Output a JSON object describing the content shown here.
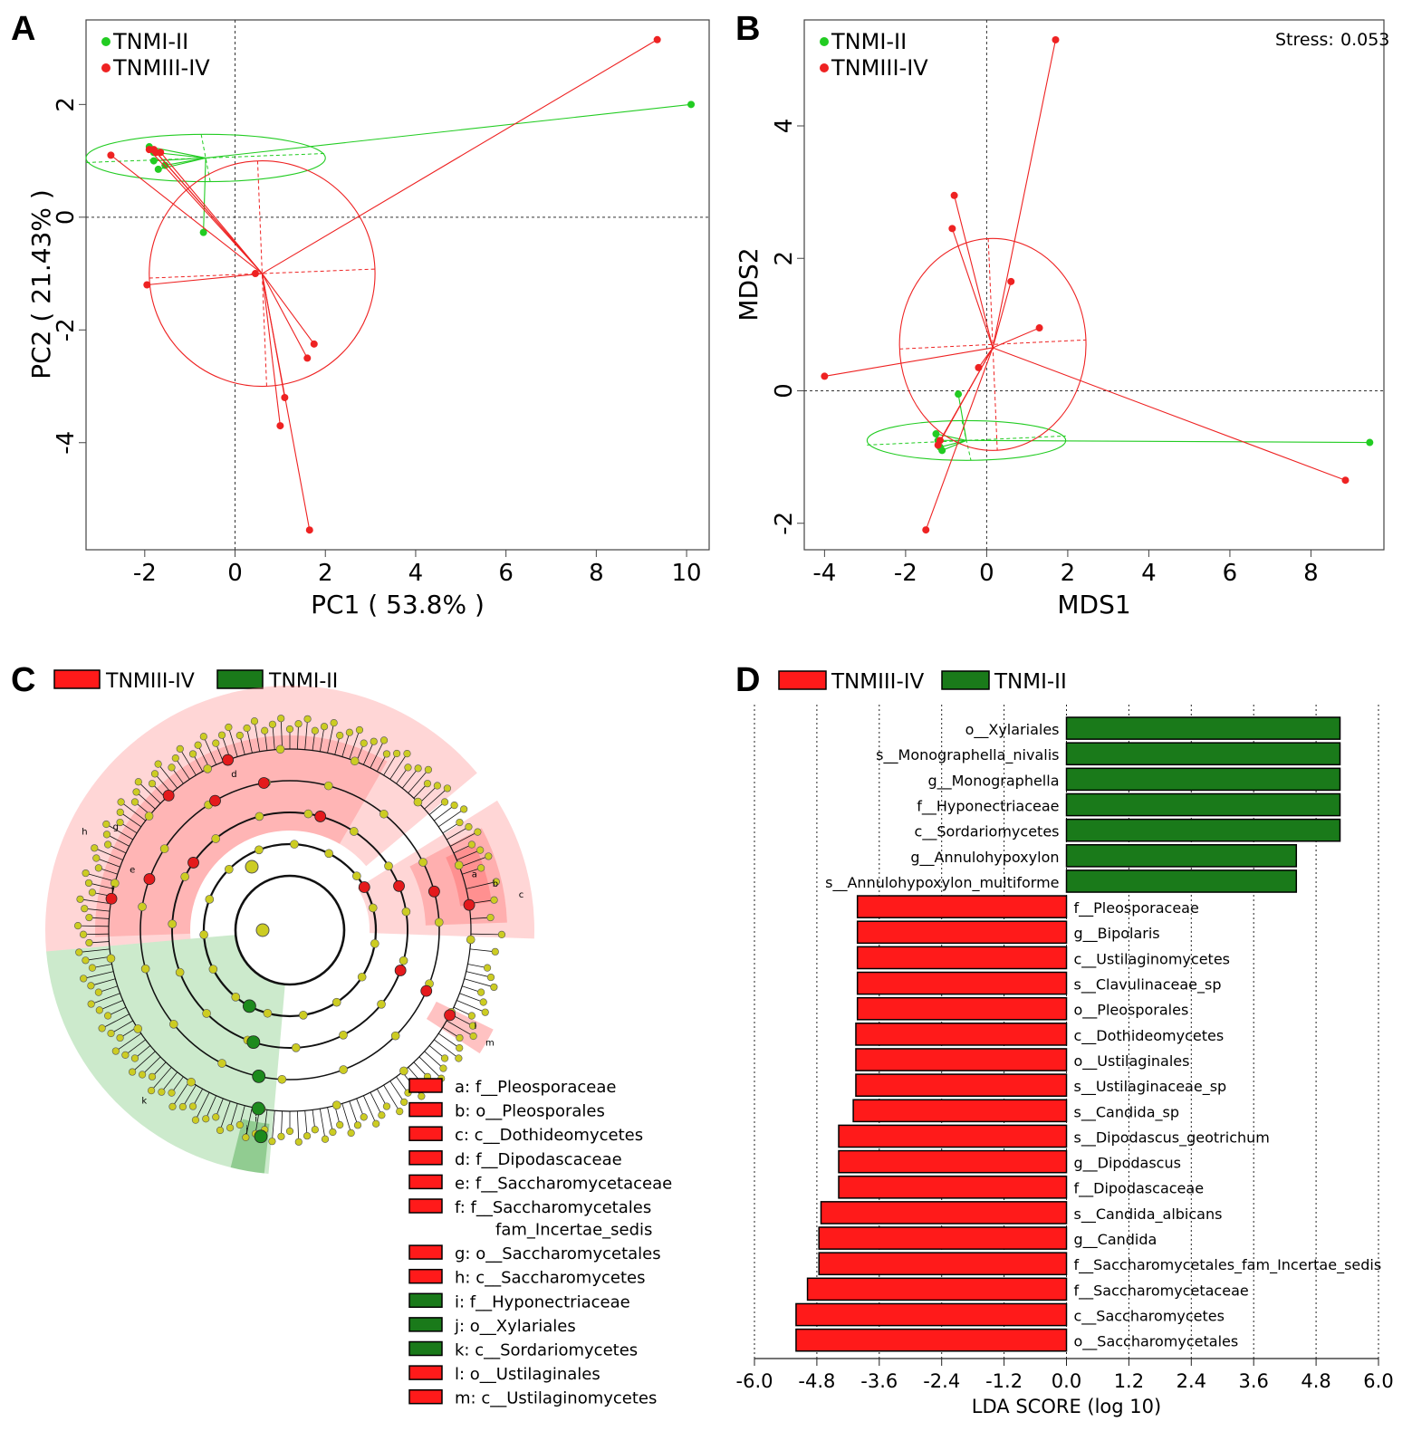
{
  "colors": {
    "green": "#22cc22",
    "red": "#ee2222",
    "dkgreen": "#1a7a1a",
    "barred": "#ff1a1a",
    "node": "#cccc22"
  },
  "panel_labels": [
    "A",
    "B",
    "C",
    "D"
  ],
  "chart_data": [
    {
      "panel": "A",
      "type": "scatter",
      "xlabel": "PC1 ( 53.8% )",
      "ylabel": "PC2 ( 21.43% )",
      "xlim": [
        -3.3,
        10.5
      ],
      "ylim": [
        -5.9,
        3.5
      ],
      "xticks": [
        -2,
        0,
        2,
        4,
        6,
        8,
        10
      ],
      "yticks": [
        -4,
        -2,
        0,
        2
      ],
      "legend": [
        "TNMI-II",
        "TNMIII-IV"
      ],
      "series": [
        {
          "name": "TNMI-II",
          "color": "green",
          "centroid": [
            -0.65,
            1.05
          ],
          "ellipse": {
            "cx": -0.65,
            "cy": 1.05,
            "rx": 2.65,
            "ry": 0.42
          },
          "points": [
            [
              -1.9,
              1.25
            ],
            [
              -1.8,
              1.15
            ],
            [
              -1.8,
              1.0
            ],
            [
              -1.7,
              0.85
            ],
            [
              -1.55,
              0.92
            ],
            [
              -0.7,
              -0.27
            ],
            [
              10.1,
              2.0
            ]
          ]
        },
        {
          "name": "TNMIII-IV",
          "color": "red",
          "centroid": [
            0.6,
            -1.0
          ],
          "ellipse": {
            "cx": 0.6,
            "cy": -1.0,
            "rx": 2.5,
            "ry": 2.0
          },
          "points": [
            [
              -2.75,
              1.1
            ],
            [
              -1.9,
              1.2
            ],
            [
              -1.8,
              1.2
            ],
            [
              -1.75,
              1.15
            ],
            [
              -1.65,
              1.15
            ],
            [
              -1.95,
              -1.2
            ],
            [
              0.45,
              -1.0
            ],
            [
              1.75,
              -2.25
            ],
            [
              1.6,
              -2.5
            ],
            [
              1.1,
              -3.2
            ],
            [
              1.0,
              -3.7
            ],
            [
              1.65,
              -5.55
            ],
            [
              9.35,
              3.15
            ]
          ]
        }
      ]
    },
    {
      "panel": "B",
      "type": "scatter",
      "xlabel": "MDS1",
      "ylabel": "MDS2",
      "stress_label": "Stress:",
      "stress_value": "0.053",
      "xlim": [
        -4.5,
        9.8
      ],
      "ylim": [
        -2.4,
        5.6
      ],
      "xticks": [
        -4,
        -2,
        0,
        2,
        4,
        6,
        8
      ],
      "yticks": [
        -2,
        0,
        2,
        4
      ],
      "legend": [
        "TNMI-II",
        "TNMIII-IV"
      ],
      "series": [
        {
          "name": "TNMI-II",
          "color": "green",
          "centroid": [
            -0.5,
            -0.75
          ],
          "ellipse": {
            "cx": -0.5,
            "cy": -0.75,
            "rx": 2.45,
            "ry": 0.3
          },
          "points": [
            [
              -0.7,
              -0.05
            ],
            [
              -1.25,
              -0.65
            ],
            [
              -1.2,
              -0.75
            ],
            [
              -1.15,
              -0.85
            ],
            [
              -1.1,
              -0.9
            ],
            [
              9.45,
              -0.78
            ]
          ]
        },
        {
          "name": "TNMIII-IV",
          "color": "red",
          "centroid": [
            0.15,
            0.65
          ],
          "ellipse": {
            "cx": 0.15,
            "cy": 0.7,
            "rx": 2.3,
            "ry": 1.6
          },
          "points": [
            [
              -4.0,
              0.22
            ],
            [
              -0.8,
              2.95
            ],
            [
              -0.85,
              2.45
            ],
            [
              0.6,
              1.65
            ],
            [
              1.3,
              0.95
            ],
            [
              -0.2,
              0.35
            ],
            [
              -1.15,
              -0.75
            ],
            [
              -1.2,
              -0.82
            ],
            [
              -1.5,
              -2.1
            ],
            [
              1.7,
              5.3
            ],
            [
              8.85,
              -1.35
            ]
          ]
        }
      ]
    },
    {
      "panel": "D",
      "type": "bar",
      "orientation": "horizontal",
      "xlabel": "LDA SCORE (log 10)",
      "xlim": [
        -6.0,
        6.0
      ],
      "xticks": [
        "-6.0",
        "-4.8",
        "-3.6",
        "-2.4",
        "-1.2",
        "0.0",
        "1.2",
        "2.4",
        "3.6",
        "4.8",
        "6.0"
      ],
      "legend": [
        "TNMIII-IV",
        "TNMI-II"
      ],
      "bars": [
        {
          "label": "o__Xylariales",
          "value": 5.26,
          "group": "TNMI-II"
        },
        {
          "label": "s__Monographella_nivalis",
          "value": 5.26,
          "group": "TNMI-II"
        },
        {
          "label": "g__Monographella",
          "value": 5.26,
          "group": "TNMI-II"
        },
        {
          "label": "f__Hyponectriaceae",
          "value": 5.26,
          "group": "TNMI-II"
        },
        {
          "label": "c__Sordariomycetes",
          "value": 5.26,
          "group": "TNMI-II"
        },
        {
          "label": "g__Annulohypoxylon",
          "value": 4.42,
          "group": "TNMI-II"
        },
        {
          "label": "s__Annulohypoxylon_multiforme",
          "value": 4.42,
          "group": "TNMI-II"
        },
        {
          "label": "f__Pleosporaceae",
          "value": -4.02,
          "group": "TNMIII-IV"
        },
        {
          "label": "g__Bipolaris",
          "value": -4.02,
          "group": "TNMIII-IV"
        },
        {
          "label": "c__Ustilaginomycetes",
          "value": -4.02,
          "group": "TNMIII-IV"
        },
        {
          "label": "s__Clavulinaceae_sp",
          "value": -4.02,
          "group": "TNMIII-IV"
        },
        {
          "label": "o__Pleosporales",
          "value": -4.02,
          "group": "TNMIII-IV"
        },
        {
          "label": "c__Dothideomycetes",
          "value": -4.05,
          "group": "TNMIII-IV"
        },
        {
          "label": "o__Ustilaginales",
          "value": -4.05,
          "group": "TNMIII-IV"
        },
        {
          "label": "s__Ustilaginaceae_sp",
          "value": -4.05,
          "group": "TNMIII-IV"
        },
        {
          "label": "s__Candida_sp",
          "value": -4.1,
          "group": "TNMIII-IV"
        },
        {
          "label": "s__Dipodascus_geotrichum",
          "value": -4.38,
          "group": "TNMIII-IV"
        },
        {
          "label": "g__Dipodascus",
          "value": -4.38,
          "group": "TNMIII-IV"
        },
        {
          "label": "f__Dipodascaceae",
          "value": -4.38,
          "group": "TNMIII-IV"
        },
        {
          "label": "s__Candida_albicans",
          "value": -4.72,
          "group": "TNMIII-IV"
        },
        {
          "label": "g__Candida",
          "value": -4.76,
          "group": "TNMIII-IV"
        },
        {
          "label": "f__Saccharomycetales_fam_Incertae_sedis",
          "value": -4.76,
          "group": "TNMIII-IV"
        },
        {
          "label": "f__Saccharomycetaceae",
          "value": -4.98,
          "group": "TNMIII-IV"
        },
        {
          "label": "c__Saccharomycetes",
          "value": -5.2,
          "group": "TNMIII-IV"
        },
        {
          "label": "o__Saccharomycetales",
          "value": -5.2,
          "group": "TNMIII-IV"
        }
      ]
    }
  ],
  "cladogram": {
    "legend": [
      "TNMIII-IV",
      "TNMI-II"
    ],
    "sector_letters": [
      "a",
      "b",
      "c",
      "d",
      "e",
      "f",
      "g",
      "h",
      "i",
      "j",
      "k",
      "l",
      "m"
    ],
    "key": [
      {
        "text": "a: f__Pleosporaceae",
        "group": "red"
      },
      {
        "text": "b: o__Pleosporales",
        "group": "red"
      },
      {
        "text": "c: c__Dothideomycetes",
        "group": "red"
      },
      {
        "text": "d: f__Dipodascaceae",
        "group": "red"
      },
      {
        "text": "e: f__Saccharomycetaceae",
        "group": "red"
      },
      {
        "text": "f: f__Saccharomycetales",
        "text2": "fam_Incertae_sedis",
        "group": "red"
      },
      {
        "text": "g: o__Saccharomycetales",
        "group": "red"
      },
      {
        "text": "h: c__Saccharomycetes",
        "group": "red"
      },
      {
        "text": "i: f__Hyponectriaceae",
        "group": "green"
      },
      {
        "text": "j: o__Xylariales",
        "group": "green"
      },
      {
        "text": "k: c__Sordariomycetes",
        "group": "green"
      },
      {
        "text": "l: o__Ustilaginales",
        "group": "red"
      },
      {
        "text": "m: c__Ustilaginomycetes",
        "group": "red"
      }
    ]
  }
}
